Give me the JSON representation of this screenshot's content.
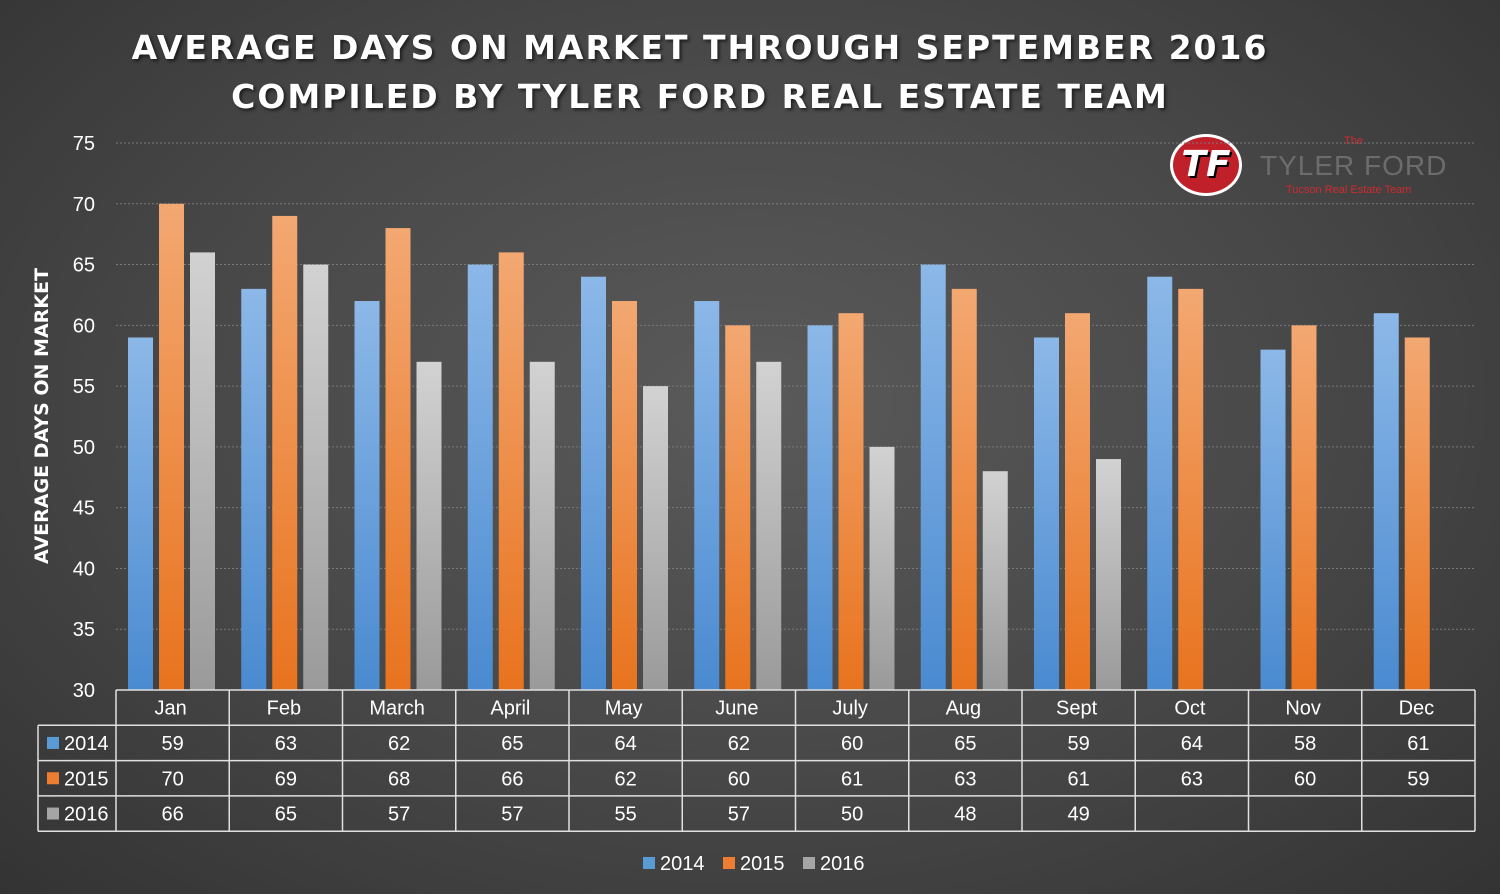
{
  "title_line1": "AVERAGE DAYS ON MARKET THROUGH SEPTEMBER 2016",
  "title_line2": "COMPILED BY TYLER FORD REAL ESTATE TEAM",
  "logo": {
    "monogram": "TF",
    "the": "The",
    "name": "TYLER FORD",
    "tagline": "Tucson Real Estate Team"
  },
  "colors": {
    "2014": "#5b9bd5",
    "2015": "#ed7d31",
    "2016": "#a5a5a5"
  },
  "chart_data": {
    "type": "bar",
    "title": "AVERAGE DAYS ON MARKET THROUGH SEPTEMBER 2016",
    "subtitle": "COMPILED BY TYLER FORD REAL ESTATE TEAM",
    "ylabel": "AVERAGE DAYS ON MARKET",
    "xlabel": "",
    "ylim": [
      30,
      75
    ],
    "yticks": [
      30,
      35,
      40,
      45,
      50,
      55,
      60,
      65,
      70,
      75
    ],
    "grid": true,
    "legend": "bottom",
    "data_table": true,
    "categories": [
      "Jan",
      "Feb",
      "March",
      "April",
      "May",
      "June",
      "July",
      "Aug",
      "Sept",
      "Oct",
      "Nov",
      "Dec"
    ],
    "series": [
      {
        "name": "2014",
        "values": [
          59,
          63,
          62,
          65,
          64,
          62,
          60,
          65,
          59,
          64,
          58,
          61
        ]
      },
      {
        "name": "2015",
        "values": [
          70,
          69,
          68,
          66,
          62,
          60,
          61,
          63,
          61,
          63,
          60,
          59
        ]
      },
      {
        "name": "2016",
        "values": [
          66,
          65,
          57,
          57,
          55,
          57,
          50,
          48,
          49,
          null,
          null,
          null
        ]
      }
    ]
  }
}
